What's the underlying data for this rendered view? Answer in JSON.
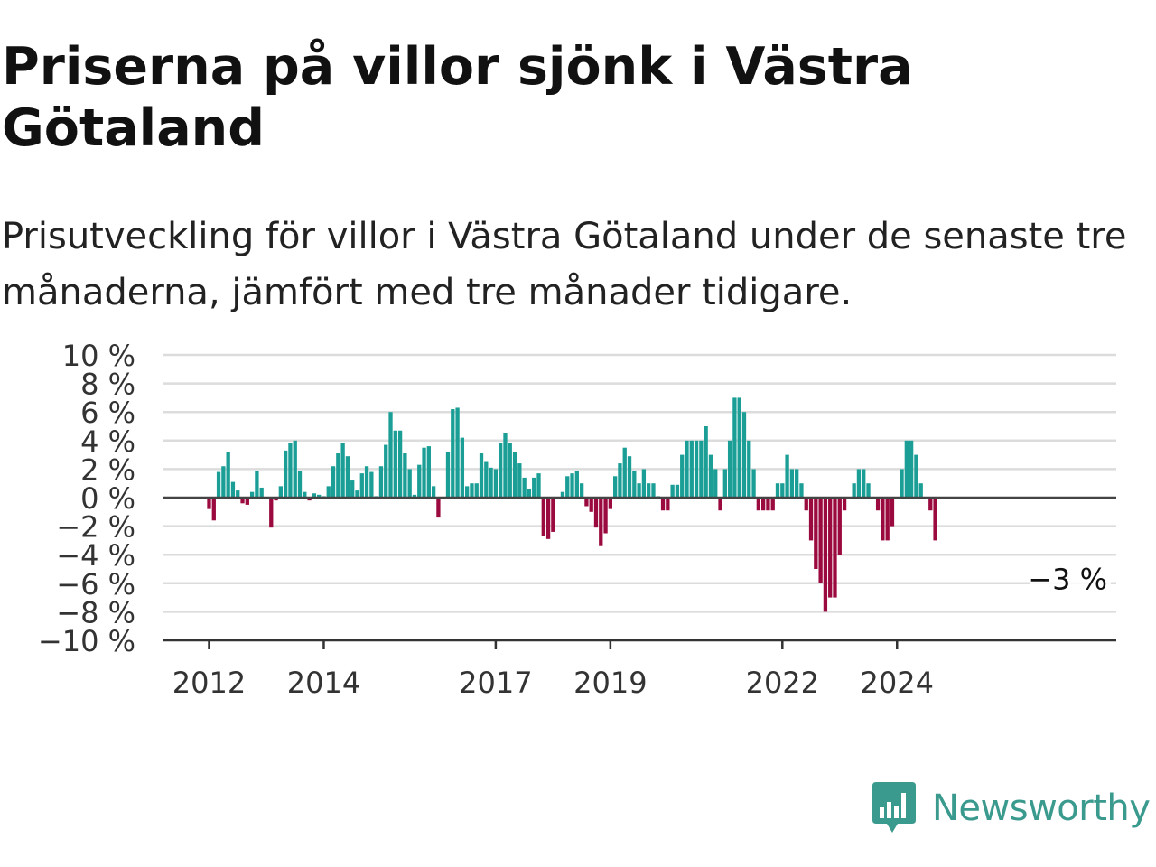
{
  "title": "Priserna på villor sjönk i Västra Götaland",
  "subtitle": "Prisutveckling för villor i Västra Götaland under de senaste tre månaderna, jämfört med tre månader tidigare.",
  "colors": {
    "positive": "#1a9e96",
    "negative": "#9b0a3e",
    "grid": "#dcdcdc",
    "zero_line": "#444444",
    "brand": "#3a9a8e"
  },
  "brand": {
    "name": "Newsworthy",
    "icon": "newsworthy-logo-icon"
  },
  "chart_data": {
    "type": "bar",
    "start": "2012-01",
    "frequency": "monthly",
    "ylim": [
      -10,
      10
    ],
    "yticks": [
      "10 %",
      "8 %",
      "6 %",
      "4 %",
      "2 %",
      "0 %",
      "−2 %",
      "−4 %",
      "−6 %",
      "−8 %",
      "−10 %"
    ],
    "xticks": [
      {
        "label": "2012",
        "month": "2012-01"
      },
      {
        "label": "2014",
        "month": "2014-01"
      },
      {
        "label": "2017",
        "month": "2017-01"
      },
      {
        "label": "2019",
        "month": "2019-01"
      },
      {
        "label": "2022",
        "month": "2022-01"
      },
      {
        "label": "2024",
        "month": "2024-01"
      }
    ],
    "annotation": "−3 %",
    "values": [
      -0.8,
      -1.6,
      1.8,
      2.2,
      3.2,
      1.1,
      0.5,
      -0.4,
      -0.5,
      0.4,
      1.9,
      0.7,
      -0.1,
      -2.1,
      -0.2,
      0.8,
      3.3,
      3.8,
      4.0,
      1.9,
      0.4,
      -0.2,
      0.3,
      0.2,
      0.1,
      0.8,
      2.2,
      3.1,
      3.8,
      2.9,
      1.2,
      0.5,
      1.7,
      2.2,
      1.8,
      0.1,
      2.2,
      3.7,
      6.0,
      4.7,
      4.7,
      3.1,
      2.0,
      0.2,
      2.3,
      3.5,
      3.6,
      0.8,
      -1.4,
      -0.1,
      3.2,
      6.2,
      6.3,
      4.2,
      0.8,
      1.0,
      1.0,
      3.1,
      2.5,
      2.1,
      2.0,
      3.8,
      4.5,
      3.8,
      3.2,
      2.4,
      1.4,
      0.6,
      1.4,
      1.7,
      -2.7,
      -2.9,
      -2.4,
      0.0,
      0.4,
      1.5,
      1.7,
      1.9,
      1.0,
      -0.6,
      -1.0,
      -2.1,
      -3.4,
      -2.5,
      -0.8,
      1.5,
      2.4,
      3.5,
      2.9,
      1.9,
      1.0,
      2.0,
      1.0,
      1.0,
      0.1,
      -0.9,
      -0.9,
      0.9,
      0.9,
      3.0,
      4.0,
      4.0,
      4.0,
      4.0,
      5.0,
      3.0,
      2.0,
      -0.9,
      2.0,
      4.0,
      7.0,
      7.0,
      6.0,
      4.0,
      2.0,
      -0.9,
      -0.9,
      -0.9,
      -0.9,
      1.0,
      1.0,
      3.0,
      2.0,
      2.0,
      1.0,
      -0.9,
      -3.0,
      -5.0,
      -6.0,
      -8.0,
      -7.0,
      -7.0,
      -4.0,
      -0.9,
      0.0,
      1.0,
      2.0,
      2.0,
      1.0,
      0.0,
      -0.9,
      -3.0,
      -3.0,
      -2.0,
      0.0,
      2.0,
      4.0,
      4.0,
      3.0,
      1.0,
      0.0,
      -0.9,
      -3.0
    ]
  }
}
